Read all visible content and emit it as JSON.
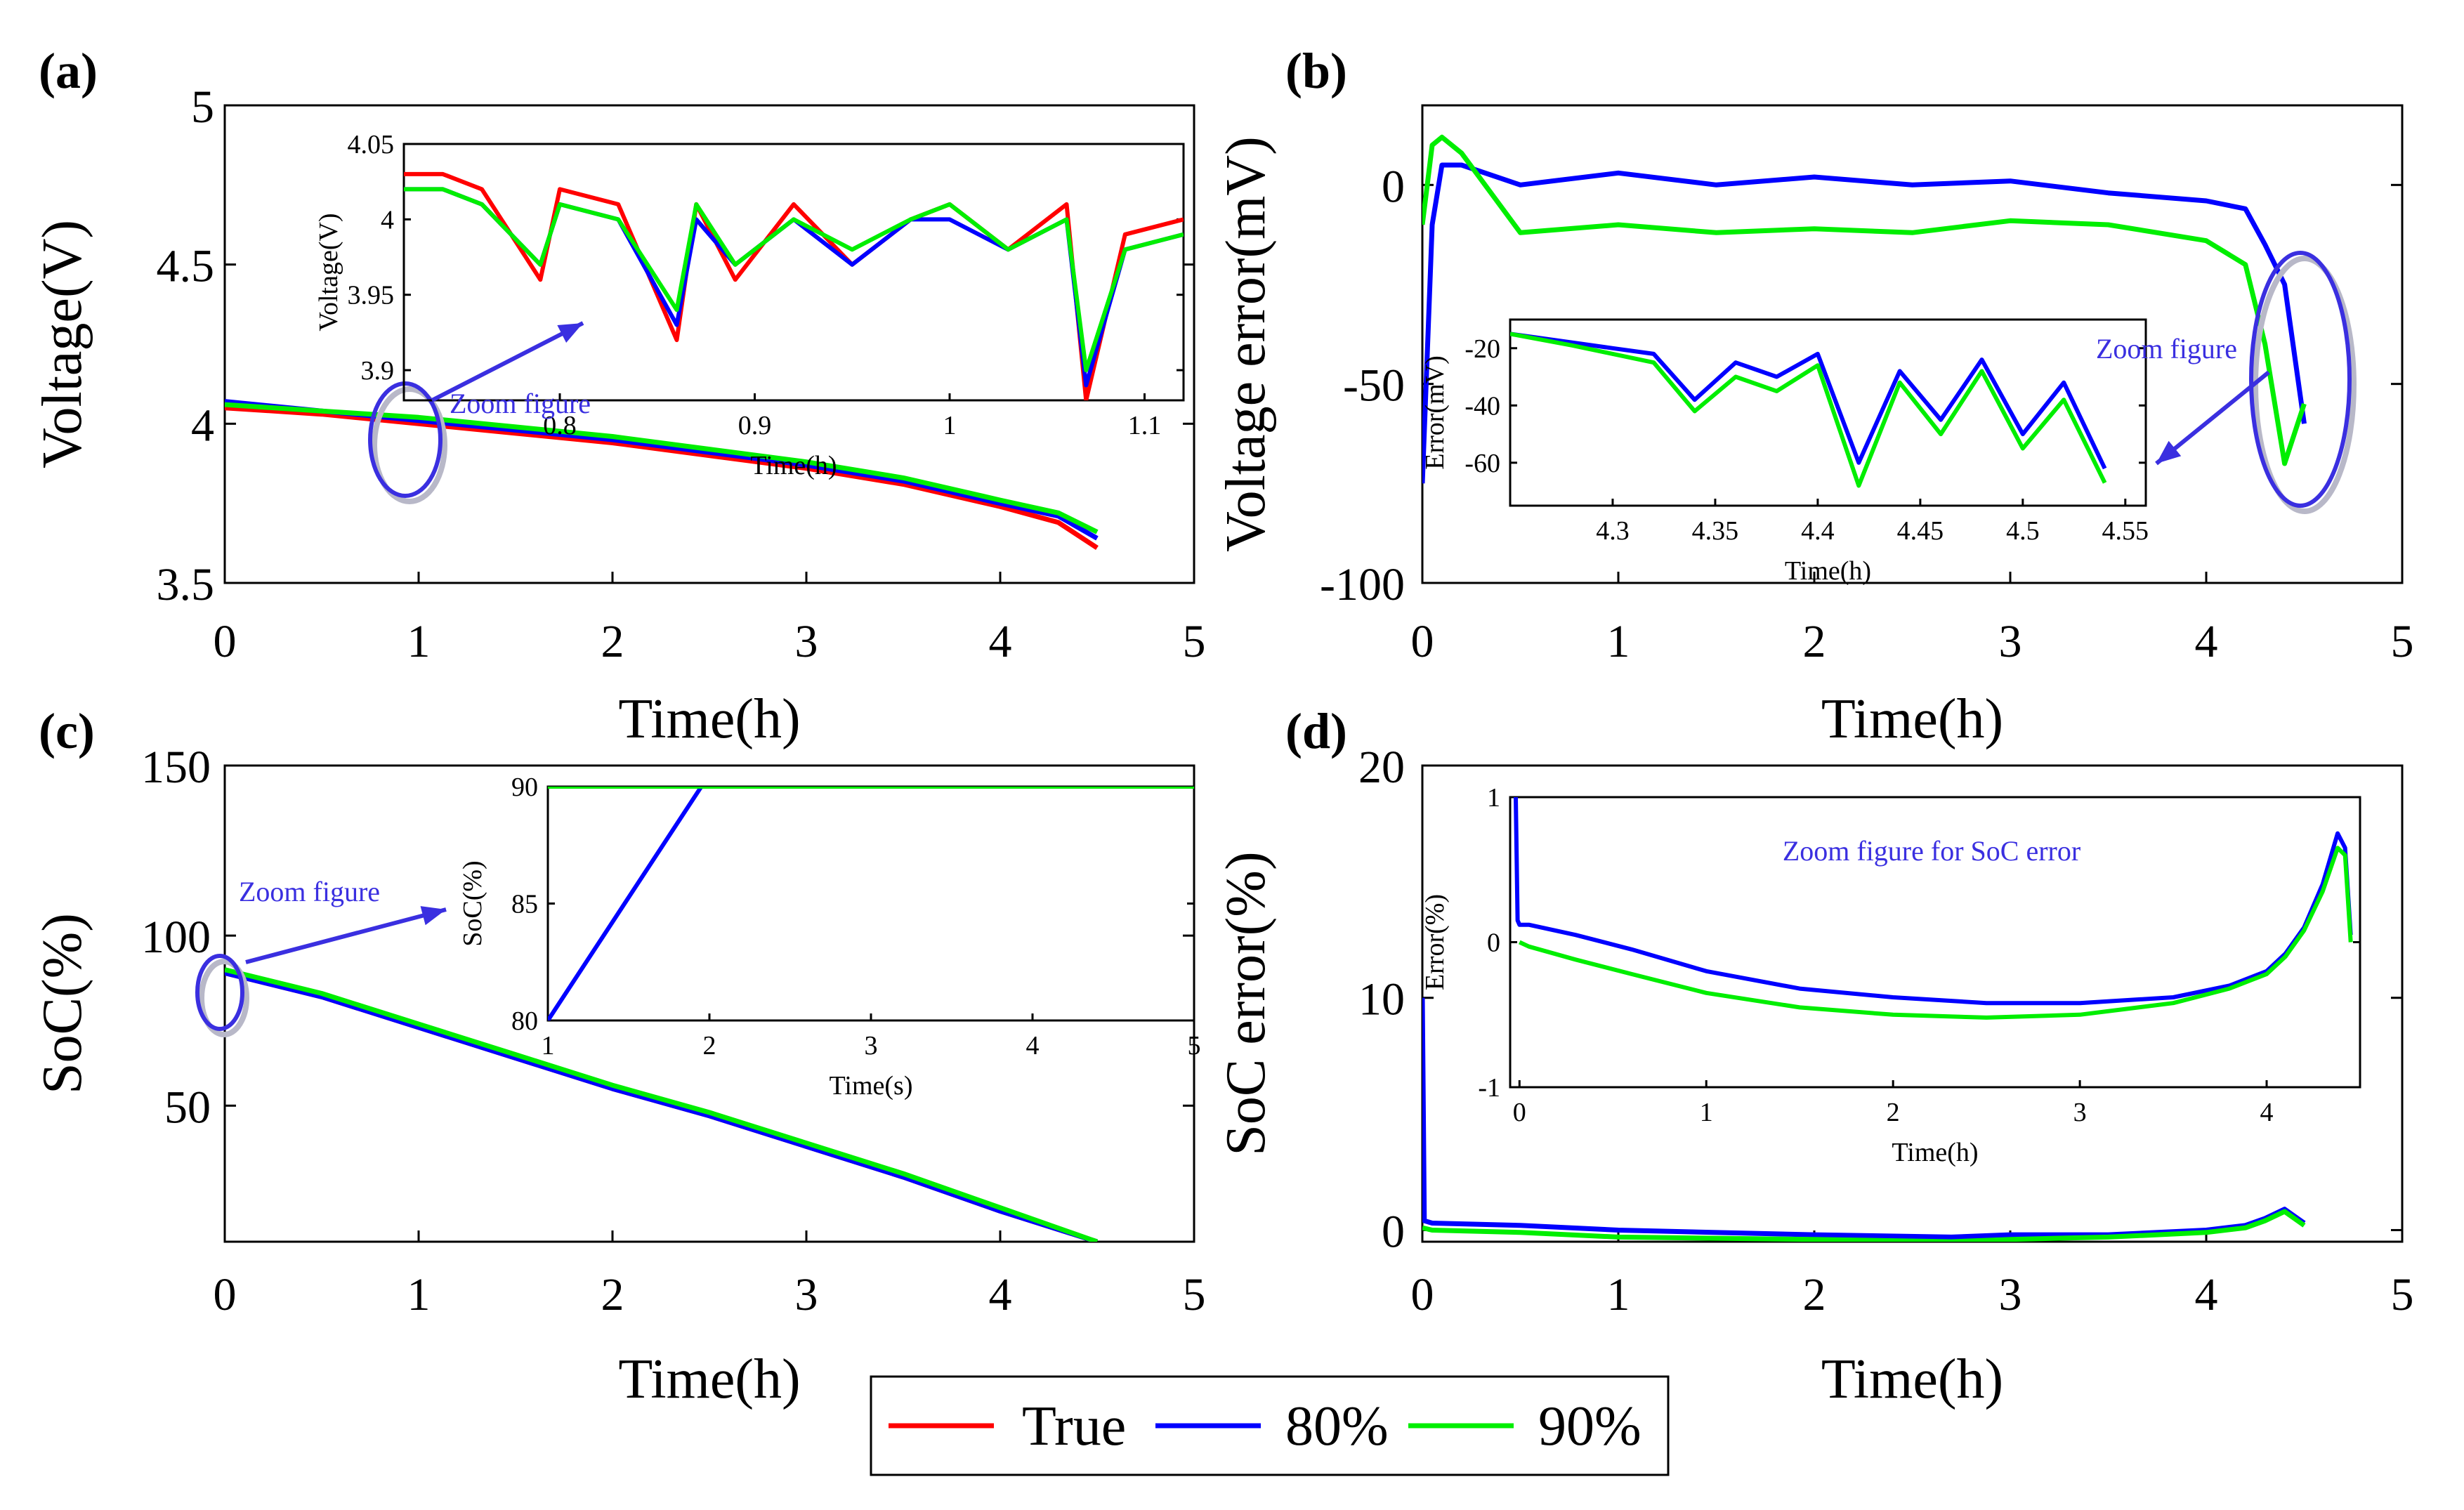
{
  "colors": {
    "true": "#ff0000",
    "p80": "#0000ff",
    "p90": "#00ee00",
    "annotation": "#3a2fe0"
  },
  "legend": [
    {
      "key": "true",
      "label": "True"
    },
    {
      "key": "p80",
      "label": "80%"
    },
    {
      "key": "p90",
      "label": "90%"
    }
  ],
  "chart_data": [
    {
      "id": "a",
      "panel_label": "(a)",
      "type": "line",
      "xlabel": "Time(h)",
      "ylabel": "Voltage(V)",
      "xlim": [
        0,
        5
      ],
      "ylim": [
        3.5,
        5
      ],
      "xticks": [
        0,
        1,
        2,
        3,
        4,
        5
      ],
      "yticks": [
        3.5,
        4,
        4.5,
        5
      ],
      "ytick_labels": [
        "3.5",
        "4",
        "4.5",
        "5"
      ],
      "annotation": "Zoom figure",
      "series": [
        {
          "name": "True",
          "key": "true",
          "x": [
            0,
            0.5,
            1,
            1.5,
            2,
            2.5,
            3,
            3.5,
            4,
            4.3,
            4.5
          ],
          "y": [
            4.05,
            4.03,
            4.0,
            3.97,
            3.94,
            3.9,
            3.86,
            3.81,
            3.74,
            3.69,
            3.61
          ]
        },
        {
          "name": "80%",
          "key": "p80",
          "x": [
            0,
            0.5,
            1,
            1.5,
            2,
            2.5,
            3,
            3.5,
            4,
            4.3,
            4.5
          ],
          "y": [
            4.07,
            4.04,
            4.01,
            3.98,
            3.95,
            3.91,
            3.87,
            3.82,
            3.75,
            3.71,
            3.64
          ]
        },
        {
          "name": "90%",
          "key": "p90",
          "x": [
            0,
            0.5,
            1,
            1.5,
            2,
            2.5,
            3,
            3.5,
            4,
            4.3,
            4.5
          ],
          "y": [
            4.06,
            4.04,
            4.02,
            3.99,
            3.96,
            3.92,
            3.88,
            3.83,
            3.76,
            3.72,
            3.66
          ]
        }
      ],
      "inset": {
        "xlabel": "Time(h)",
        "ylabel": "Voltage(V)",
        "xlim": [
          0.72,
          1.12
        ],
        "ylim": [
          3.88,
          4.05
        ],
        "xticks": [
          0.8,
          0.9,
          1,
          1.1
        ],
        "yticks": [
          3.9,
          3.95,
          4,
          4.05
        ],
        "xtick_labels": [
          "0.8",
          "0.9",
          "1",
          "1.1"
        ],
        "ytick_labels": [
          "3.9",
          "3.95",
          "4",
          "4.05"
        ],
        "series": [
          {
            "name": "True",
            "key": "true",
            "x": [
              0.72,
              0.74,
              0.76,
              0.79,
              0.8,
              0.83,
              0.86,
              0.87,
              0.89,
              0.92,
              0.95,
              0.98,
              1.0,
              1.03,
              1.06,
              1.07,
              1.09,
              1.12
            ],
            "y": [
              4.03,
              4.03,
              4.02,
              3.96,
              4.02,
              4.01,
              3.92,
              4.01,
              3.96,
              4.01,
              3.97,
              4.0,
              4.01,
              3.98,
              4.01,
              3.88,
              3.99,
              4.0
            ]
          },
          {
            "name": "80%",
            "key": "p80",
            "x": [
              0.72,
              0.74,
              0.76,
              0.79,
              0.8,
              0.83,
              0.86,
              0.87,
              0.89,
              0.92,
              0.95,
              0.98,
              1.0,
              1.03,
              1.06,
              1.07,
              1.09,
              1.12
            ],
            "y": [
              4.02,
              4.02,
              4.01,
              3.97,
              4.01,
              4.0,
              3.93,
              4.0,
              3.97,
              4.0,
              3.97,
              4.0,
              4.0,
              3.98,
              4.0,
              3.89,
              3.98,
              3.99
            ]
          },
          {
            "name": "90%",
            "key": "p90",
            "x": [
              0.72,
              0.74,
              0.76,
              0.79,
              0.8,
              0.83,
              0.86,
              0.87,
              0.89,
              0.92,
              0.95,
              0.98,
              1.0,
              1.03,
              1.06,
              1.07,
              1.09,
              1.12
            ],
            "y": [
              4.02,
              4.02,
              4.01,
              3.97,
              4.01,
              4.0,
              3.94,
              4.01,
              3.97,
              4.0,
              3.98,
              4.0,
              4.01,
              3.98,
              4.0,
              3.9,
              3.98,
              3.99
            ]
          }
        ]
      }
    },
    {
      "id": "b",
      "panel_label": "(b)",
      "type": "line",
      "xlabel": "Time(h)",
      "ylabel": "Voltage error(mV)",
      "xlim": [
        0,
        5
      ],
      "ylim": [
        -100,
        20
      ],
      "xticks": [
        0,
        1,
        2,
        3,
        4,
        5
      ],
      "yticks": [
        -100,
        -50,
        0
      ],
      "ytick_labels": [
        "-100",
        "-50",
        "0"
      ],
      "annotation": "Zoom figure",
      "series": [
        {
          "name": "80%",
          "key": "p80",
          "x": [
            0,
            0.05,
            0.1,
            0.2,
            0.5,
            1,
            1.5,
            2,
            2.5,
            3,
            3.5,
            4,
            4.2,
            4.3,
            4.4,
            4.5
          ],
          "y": [
            -75,
            -10,
            5,
            5,
            0,
            3,
            0,
            2,
            0,
            1,
            -2,
            -4,
            -6,
            -15,
            -25,
            -60
          ]
        },
        {
          "name": "90%",
          "key": "p90",
          "x": [
            0,
            0.05,
            0.1,
            0.2,
            0.5,
            1,
            1.5,
            2,
            2.5,
            3,
            3.5,
            4,
            4.2,
            4.3,
            4.4,
            4.5
          ],
          "y": [
            -10,
            10,
            12,
            8,
            -12,
            -10,
            -12,
            -11,
            -12,
            -9,
            -10,
            -14,
            -20,
            -40,
            -70,
            -55
          ]
        }
      ],
      "inset": {
        "xlabel": "Time(h)",
        "ylabel": "Error(mV)",
        "xlim": [
          4.25,
          4.56
        ],
        "ylim": [
          -75,
          -10
        ],
        "xticks": [
          4.3,
          4.35,
          4.4,
          4.45,
          4.5,
          4.55
        ],
        "yticks": [
          -60,
          -40,
          -20
        ],
        "xtick_labels": [
          "4.3",
          "4.35",
          "4.4",
          "4.45",
          "4.5",
          "4.55"
        ],
        "ytick_labels": [
          "-60",
          "-40",
          "-20"
        ],
        "series": [
          {
            "name": "80%",
            "key": "p80",
            "x": [
              4.25,
              4.28,
              4.3,
              4.32,
              4.34,
              4.36,
              4.38,
              4.4,
              4.42,
              4.44,
              4.46,
              4.48,
              4.5,
              4.52,
              4.54
            ],
            "y": [
              -15,
              -18,
              -20,
              -22,
              -38,
              -25,
              -30,
              -22,
              -60,
              -28,
              -45,
              -24,
              -50,
              -32,
              -62
            ]
          },
          {
            "name": "90%",
            "key": "p90",
            "x": [
              4.25,
              4.28,
              4.3,
              4.32,
              4.34,
              4.36,
              4.38,
              4.4,
              4.42,
              4.44,
              4.46,
              4.48,
              4.5,
              4.52,
              4.54
            ],
            "y": [
              -15,
              -19,
              -22,
              -25,
              -42,
              -30,
              -35,
              -26,
              -68,
              -32,
              -50,
              -28,
              -55,
              -38,
              -67
            ]
          }
        ]
      }
    },
    {
      "id": "c",
      "panel_label": "(c)",
      "type": "line",
      "xlabel": "Time(h)",
      "ylabel": "SoC(%)",
      "xlim": [
        0,
        5
      ],
      "ylim": [
        10,
        150
      ],
      "xticks": [
        0,
        1,
        2,
        3,
        4,
        5
      ],
      "yticks": [
        50,
        100,
        150
      ],
      "ytick_labels": [
        "50",
        "100",
        "150"
      ],
      "annotation": "Zoom figure",
      "series": [
        {
          "name": "True",
          "key": "true",
          "x": [
            0,
            0.5,
            1,
            1.5,
            2,
            2.5,
            3,
            3.5,
            4,
            4.5
          ],
          "y": [
            89,
            82,
            73,
            64,
            55,
            47,
            38,
            29,
            19,
            10
          ]
        },
        {
          "name": "80%",
          "key": "p80",
          "x": [
            0,
            0.5,
            1,
            1.5,
            2,
            2.5,
            3,
            3.5,
            4,
            4.5
          ],
          "y": [
            89,
            82,
            73,
            64,
            55,
            47,
            38,
            29,
            19,
            10
          ]
        },
        {
          "name": "90%",
          "key": "p90",
          "x": [
            0,
            0.5,
            1,
            1.5,
            2,
            2.5,
            3,
            3.5,
            4,
            4.5
          ],
          "y": [
            90,
            83,
            74,
            65,
            56,
            48,
            39,
            30,
            20,
            10
          ]
        }
      ],
      "inset": {
        "xlabel": "Time(s)",
        "ylabel": "SoC(%)",
        "xlim": [
          1,
          5
        ],
        "ylim": [
          80,
          90
        ],
        "xticks": [
          1,
          2,
          3,
          4,
          5
        ],
        "yticks": [
          80,
          85,
          90
        ],
        "xtick_labels": [
          "1",
          "2",
          "3",
          "4",
          "5"
        ],
        "ytick_labels": [
          "80",
          "85",
          "90"
        ],
        "series": [
          {
            "name": "80%",
            "key": "p80",
            "x": [
              1,
              1.95
            ],
            "y": [
              80,
              90
            ]
          },
          {
            "name": "90%",
            "key": "p90",
            "x": [
              1,
              5
            ],
            "y": [
              90,
              90
            ]
          }
        ]
      }
    },
    {
      "id": "d",
      "panel_label": "(d)",
      "type": "line",
      "xlabel": "Time(h)",
      "ylabel": "SoC error(%)",
      "xlim": [
        0,
        5
      ],
      "ylim": [
        -0.5,
        20
      ],
      "xticks": [
        0,
        1,
        2,
        3,
        4,
        5
      ],
      "yticks": [
        0,
        10,
        20
      ],
      "ytick_labels": [
        "0",
        "10",
        "20"
      ],
      "annotation": "Zoom figure for SoC error",
      "series": [
        {
          "name": "80%",
          "key": "p80",
          "x": [
            0,
            0.01,
            0.05,
            0.5,
            1,
            2,
            2.7,
            3,
            3.5,
            4,
            4.2,
            4.3,
            4.4,
            4.5
          ],
          "y": [
            10,
            0.4,
            0.3,
            0.2,
            0.0,
            -0.2,
            -0.3,
            -0.2,
            -0.2,
            0.0,
            0.2,
            0.5,
            0.9,
            0.3
          ]
        },
        {
          "name": "90%",
          "key": "p90",
          "x": [
            0,
            0.05,
            0.5,
            1,
            2,
            2.7,
            3,
            3.5,
            4,
            4.2,
            4.3,
            4.4,
            4.5
          ],
          "y": [
            0.1,
            0.0,
            -0.1,
            -0.3,
            -0.4,
            -0.5,
            -0.4,
            -0.3,
            -0.1,
            0.1,
            0.4,
            0.8,
            0.2
          ]
        }
      ],
      "inset": {
        "xlabel": "Time(h)",
        "ylabel": "Error(%)",
        "xlim": [
          -0.05,
          4.5
        ],
        "ylim": [
          -1,
          1
        ],
        "xticks": [
          0,
          1,
          2,
          3,
          4
        ],
        "yticks": [
          -1,
          0,
          1
        ],
        "xtick_labels": [
          "0",
          "1",
          "2",
          "3",
          "4"
        ],
        "ytick_labels": [
          "-1",
          "0",
          "1"
        ],
        "series": [
          {
            "name": "80%",
            "key": "p80",
            "x": [
              -0.02,
              -0.01,
              0.0,
              0.05,
              0.3,
              0.6,
              1.0,
              1.5,
              2.0,
              2.5,
              3.0,
              3.5,
              3.8,
              4.0,
              4.1,
              4.2,
              4.3,
              4.38,
              4.42,
              4.45
            ],
            "y": [
              1.0,
              0.15,
              0.12,
              0.12,
              0.05,
              -0.05,
              -0.2,
              -0.32,
              -0.38,
              -0.42,
              -0.42,
              -0.38,
              -0.3,
              -0.2,
              -0.08,
              0.1,
              0.4,
              0.75,
              0.65,
              0.05
            ]
          },
          {
            "name": "90%",
            "key": "p90",
            "x": [
              0.0,
              0.05,
              0.3,
              0.6,
              1.0,
              1.5,
              2.0,
              2.5,
              3.0,
              3.5,
              3.8,
              4.0,
              4.1,
              4.2,
              4.3,
              4.38,
              4.42,
              4.45
            ],
            "y": [
              0.0,
              -0.03,
              -0.12,
              -0.22,
              -0.35,
              -0.45,
              -0.5,
              -0.52,
              -0.5,
              -0.42,
              -0.32,
              -0.22,
              -0.1,
              0.08,
              0.35,
              0.65,
              0.6,
              0.0
            ]
          }
        ]
      }
    }
  ]
}
